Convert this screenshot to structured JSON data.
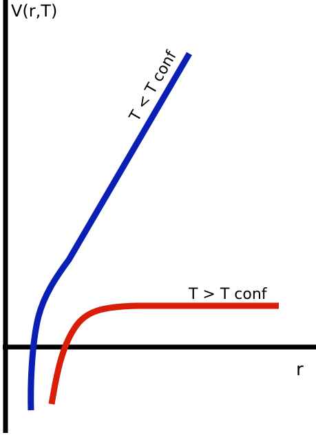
{
  "diagram": {
    "y_axis_label": "V(r,T)",
    "x_axis_label": "r",
    "curves": [
      {
        "label": "T < T conf",
        "color": "#0a1fb4"
      },
      {
        "label": "T > T conf",
        "color": "#d81e08"
      }
    ],
    "axis_color": "#000000"
  }
}
